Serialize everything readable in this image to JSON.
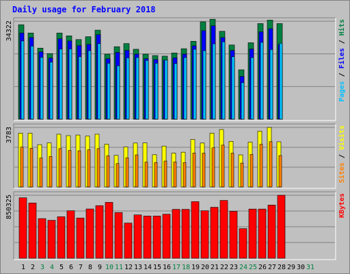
{
  "chart_data": {
    "type": "bar",
    "title": "Daily usage for February 2018",
    "categories": [
      "1",
      "2",
      "3",
      "4",
      "5",
      "6",
      "7",
      "8",
      "9",
      "10",
      "11",
      "12",
      "13",
      "14",
      "15",
      "16",
      "17",
      "18",
      "19",
      "20",
      "21",
      "22",
      "23",
      "24",
      "25",
      "26",
      "27",
      "28",
      "29",
      "30",
      "31"
    ],
    "weekend_days": [
      "3",
      "4",
      "10",
      "11",
      "17",
      "18",
      "24",
      "25",
      "31"
    ],
    "panels": [
      {
        "id": "hits-pages-files",
        "ymax_label": "34322",
        "ymax": 34322,
        "ylabel_parts": [
          {
            "text": "Pages",
            "color": "#00c0ff"
          },
          {
            "text": " / ",
            "color": "#000000"
          },
          {
            "text": "Files",
            "color": "#0000ff"
          },
          {
            "text": " / ",
            "color": "#000000"
          },
          {
            "text": "Hits",
            "color": "#008040"
          }
        ],
        "series": [
          {
            "name": "Hits",
            "color": "#008040",
            "values": [
              33100,
              30200,
              24900,
              23000,
              30200,
              29200,
              27900,
              28900,
              31200,
              22800,
              25400,
              26500,
              24500,
              22800,
              22300,
              22100,
              23200,
              24700,
              27300,
              34100,
              35000,
              30800,
              26000,
              17300,
              26800,
              33500,
              34700,
              33500,
              0,
              0,
              0
            ]
          },
          {
            "name": "Files",
            "color": "#0000ff",
            "values": [
              30200,
              28600,
              23600,
              21400,
              28200,
              27400,
              25800,
              26200,
              29600,
              21200,
              23400,
              24100,
              22800,
              21200,
              20900,
              20700,
              21500,
              22800,
              25700,
              31000,
              32700,
              28600,
              24100,
              15000,
              24600,
              30600,
              31700,
              26200,
              0,
              0,
              0
            ]
          },
          {
            "name": "Pages",
            "color": "#00c0ff",
            "values": [
              27400,
              25600,
              21700,
              20000,
              24600,
              24600,
              21900,
              24000,
              26500,
              19600,
              18700,
              21500,
              21600,
              20600,
              19600,
              20700,
              19500,
              21600,
              24500,
              24000,
              26400,
              27100,
              21900,
              12800,
              21600,
              26900,
              24400,
              26600,
              0,
              0,
              0
            ]
          }
        ]
      },
      {
        "id": "visits-sites",
        "ymax_label": "3783",
        "ymax": 3783,
        "ylabel_parts": [
          {
            "text": "Sites",
            "color": "#ff8000"
          },
          {
            "text": " / ",
            "color": "#000000"
          },
          {
            "text": "Visits",
            "color": "#ffff00"
          }
        ],
        "series": [
          {
            "name": "Visits",
            "color": "#ffff00",
            "values": [
              3420,
              3420,
              2690,
              2800,
              3350,
              3260,
              3300,
              3230,
              3350,
              2720,
              2010,
              2540,
              2790,
              2800,
              2050,
              2600,
              2150,
              2210,
              3020,
              2790,
              3420,
              3650,
              2900,
              2040,
              2850,
              3550,
              3780,
              2870,
              0,
              0,
              0
            ]
          },
          {
            "name": "Sites",
            "color": "#ff8000",
            "values": [
              2540,
              2460,
              1840,
              1940,
              2440,
              2320,
              2300,
              2360,
              2440,
              1980,
              1490,
              1850,
              2040,
              1580,
              1560,
              1650,
              1590,
              1550,
              2160,
              2150,
              2490,
              2660,
              2150,
              1520,
              2070,
              2710,
              2880,
              2000,
              0,
              0,
              0
            ]
          }
        ]
      },
      {
        "id": "kbytes",
        "ymax_label": "850325",
        "ymax": 850325,
        "ylabel_parts": [
          {
            "text": "KBytes",
            "color": "#ff0000"
          }
        ],
        "series": [
          {
            "name": "KBytes",
            "color": "#ff0000",
            "values": [
              816000,
              746000,
              535000,
              512000,
              560000,
              641000,
              543000,
              665000,
              710000,
              754000,
              617000,
              475000,
              585000,
              570000,
              570000,
              594000,
              660000,
              660000,
              764000,
              641000,
              688000,
              780000,
              633000,
              400000,
              664000,
              664000,
              718000,
              850000,
              0,
              0,
              0
            ]
          }
        ]
      }
    ]
  }
}
